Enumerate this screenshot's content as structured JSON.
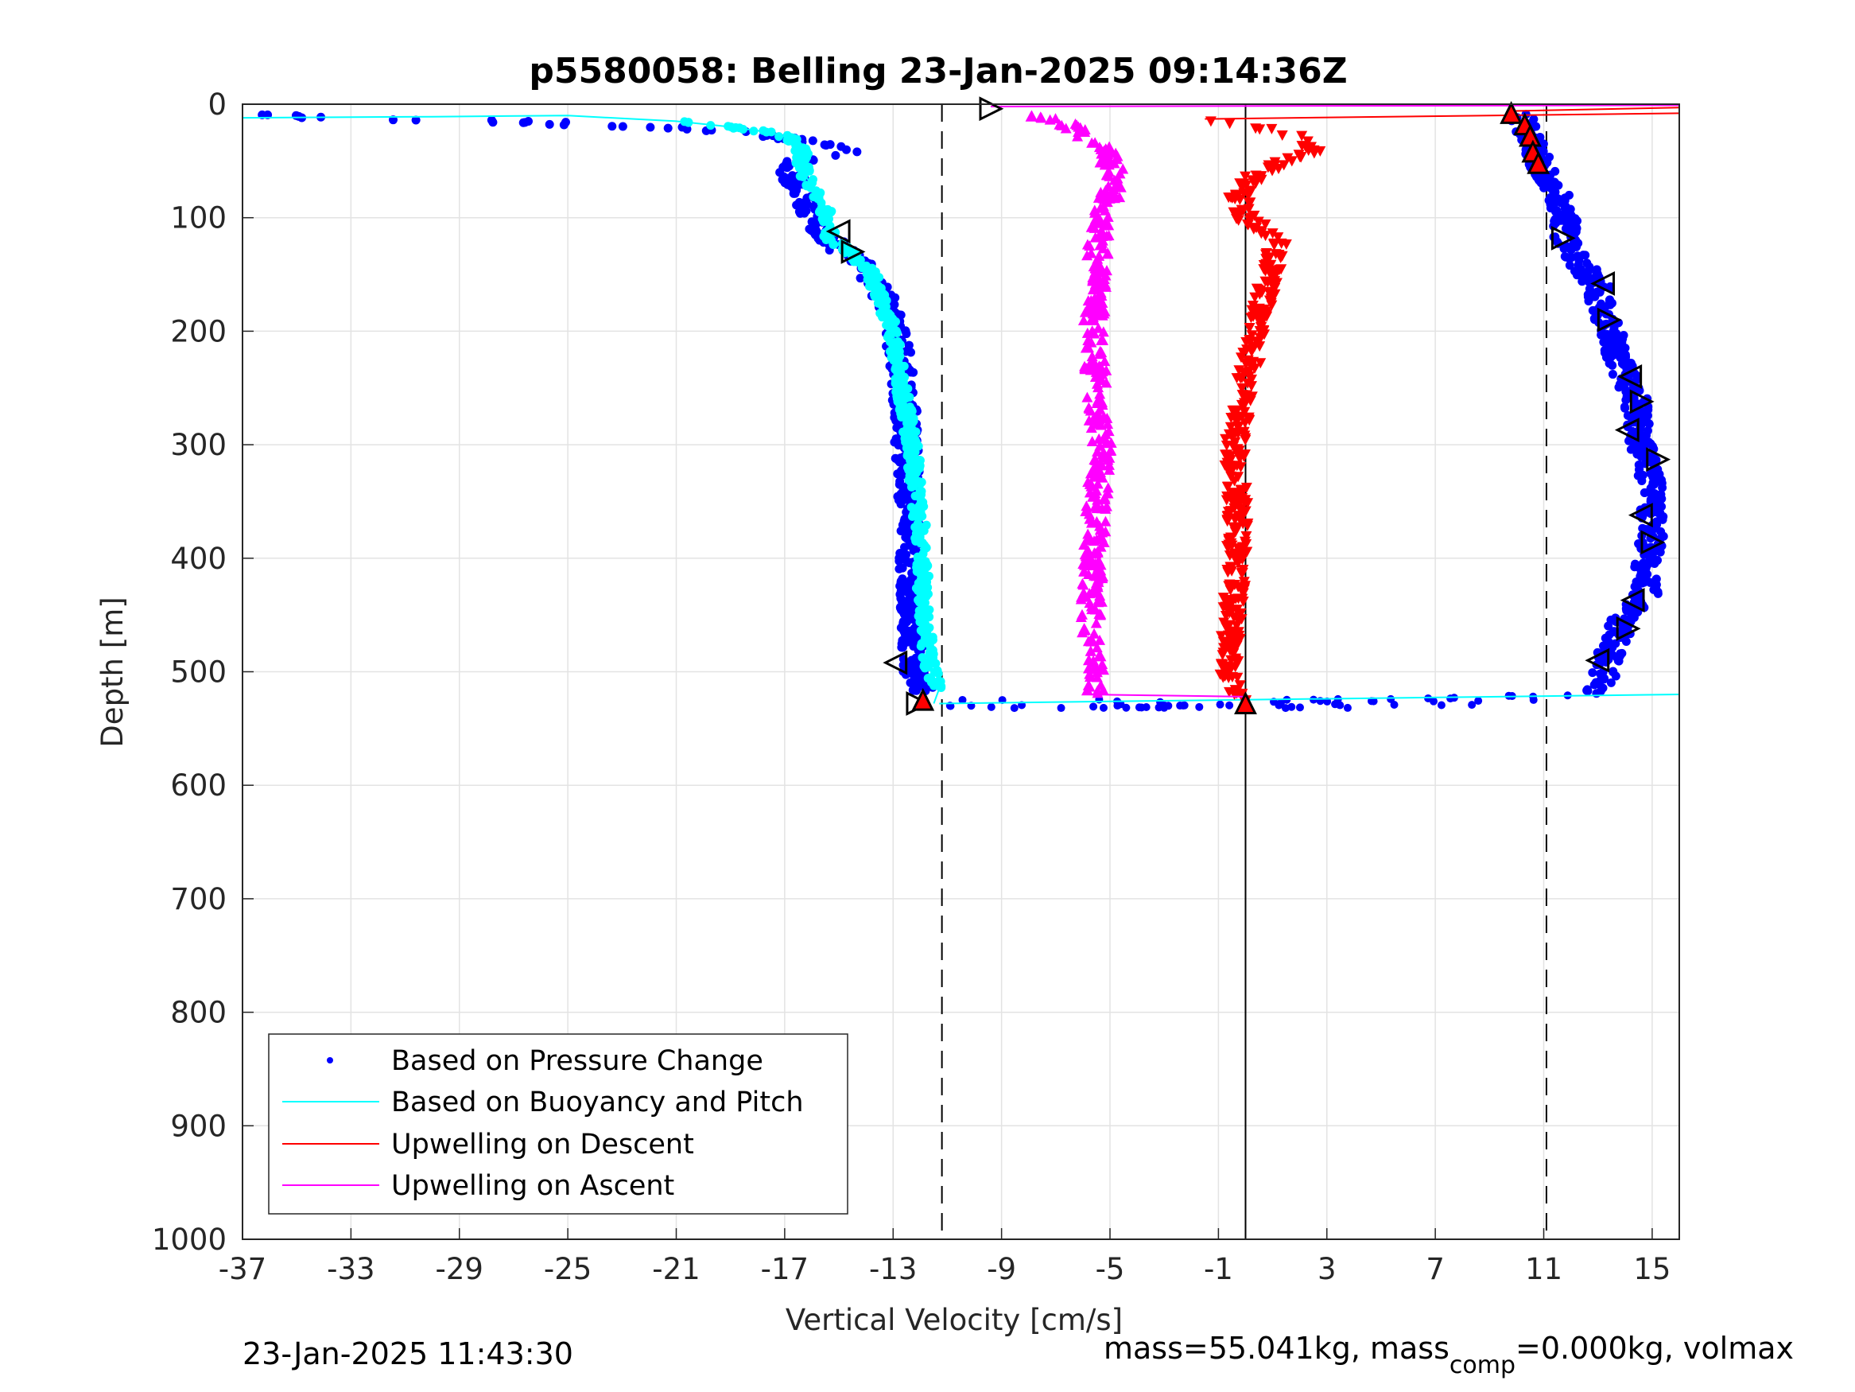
{
  "chart_data": {
    "type": "scatter",
    "title": "p5580058: Belling 23-Jan-2025 09:14:36Z",
    "xlabel": "Vertical Velocity [cm/s]",
    "ylabel": "Depth [m]",
    "xlim": [
      -37,
      16
    ],
    "ylim": [
      0,
      1000
    ],
    "y_reversed": true,
    "grid": true,
    "x_ticks": [
      "-37",
      "-33",
      "-29",
      "-25",
      "-21",
      "-17",
      "-13",
      "-9",
      "-5",
      "-1",
      "3",
      "7",
      "11",
      "15"
    ],
    "y_ticks": [
      "0",
      "100",
      "200",
      "300",
      "400",
      "500",
      "600",
      "700",
      "800",
      "900",
      "1000"
    ],
    "legend": {
      "position": "bottom-left",
      "entries": [
        "Based on Pressure Change",
        "Based on Buoyancy and Pitch",
        "Upwelling on Descent",
        "Upwelling on Ascent"
      ]
    },
    "colors": {
      "pressure": "#0000ff",
      "buoyancy": "#00ffff",
      "descent": "#ff0000",
      "ascent": "#ff00ff"
    },
    "reference_lines": [
      {
        "x": -11.2,
        "style": "dashed"
      },
      {
        "x": 0,
        "style": "solid"
      },
      {
        "x": 11.1,
        "style": "dashed"
      }
    ],
    "series": [
      {
        "name": "Based on Pressure Change",
        "profiles": [
          {
            "depth": [
              10,
              15,
              20,
              25,
              30,
              35,
              40,
              50,
              60,
              80,
              100,
              120,
              140,
              160,
              200,
              250,
              300,
              350,
              400,
              450,
              500,
              520
            ],
            "velocity": [
              -36.5,
              -28,
              -22,
              -18.5,
              -17,
              -15.5,
              -14.5,
              -16.5,
              -16.8,
              -16.3,
              -16,
              -15.3,
              -14.2,
              -13.5,
              -12.9,
              -12.6,
              -12.5,
              -12.4,
              -12.4,
              -12.3,
              -12.2,
              -11.8
            ]
          },
          {
            "depth": [
              520,
              510,
              500,
              480,
              450,
              430,
              400,
              380,
              350,
              320,
              300,
              280,
              260,
              240,
              220,
              200,
              180,
              160,
              140,
              120,
              100,
              80,
              60,
              40,
              20,
              10
            ],
            "velocity": [
              12.8,
              13.3,
              13.2,
              13.5,
              14,
              14.8,
              14.8,
              15,
              15,
              14.9,
              14.6,
              14.5,
              14.4,
              14,
              13.7,
              13.5,
              13.1,
              13,
              12.3,
              11.8,
              11.8,
              11.6,
              11,
              10.7,
              10.3,
              10.2
            ]
          }
        ]
      },
      {
        "name": "Based on Buoyancy and Pitch",
        "profiles": [
          {
            "depth": [
              12,
              11,
              10,
              15,
              20,
              25,
              30,
              40,
              60,
              80,
              100,
              120,
              130,
              150,
              200,
              250,
              300,
              350,
              400,
              450,
              500,
              515,
              528
            ],
            "velocity": [
              -37,
              -30,
              -25,
              -21,
              -19,
              -17.5,
              -16.8,
              -16.4,
              -16.3,
              -15.8,
              -15.4,
              -15.3,
              -14.6,
              -13.8,
              -13,
              -12.7,
              -12.3,
              -12.1,
              -11.9,
              -11.9,
              -11.6,
              -11.3,
              -11.5
            ]
          }
        ]
      },
      {
        "name": "Upwelling on Descent",
        "profiles": [
          {
            "depth": [
              13,
              25,
              40,
              60,
              80,
              100,
              120,
              140,
              160,
              180,
              200,
              250,
              300,
              350,
              400,
              450,
              500,
              525
            ],
            "velocity": [
              -1.5,
              1.5,
              2.5,
              0.5,
              -0.3,
              0,
              1.2,
              1,
              0.8,
              0.6,
              0.4,
              0,
              -0.4,
              -0.3,
              -0.3,
              -0.5,
              -0.6,
              -0.2
            ]
          }
        ]
      },
      {
        "name": "Upwelling on Ascent",
        "profiles": [
          {
            "depth": [
              520,
              500,
              450,
              400,
              350,
              300,
              250,
              200,
              150,
              100,
              80,
              60,
              40,
              20,
              8
            ],
            "velocity": [
              -5.5,
              -5.6,
              -5.7,
              -5.6,
              -5.5,
              -5.3,
              -5.5,
              -5.6,
              -5.5,
              -5.4,
              -5,
              -4.8,
              -5.2,
              -6.3,
              -8
            ]
          }
        ]
      }
    ],
    "markers": [
      {
        "x": -15,
        "y": 112,
        "symbol": "triangle-left"
      },
      {
        "x": -14.5,
        "y": 130,
        "symbol": "triangle-right"
      },
      {
        "x": -12.9,
        "y": 492,
        "symbol": "triangle-left"
      },
      {
        "x": -12.1,
        "y": 528,
        "symbol": "triangle-right"
      },
      {
        "x": -9.4,
        "y": 4,
        "symbol": "triangle-right"
      },
      {
        "x": 11.7,
        "y": 118,
        "symbol": "triangle-right"
      },
      {
        "x": 13.2,
        "y": 158,
        "symbol": "triangle-left"
      },
      {
        "x": 13.4,
        "y": 190,
        "symbol": "triangle-right"
      },
      {
        "x": 14.2,
        "y": 240,
        "symbol": "triangle-left"
      },
      {
        "x": 14.6,
        "y": 262,
        "symbol": "triangle-right"
      },
      {
        "x": 14.1,
        "y": 287,
        "symbol": "triangle-left"
      },
      {
        "x": 15.2,
        "y": 313,
        "symbol": "triangle-right"
      },
      {
        "x": 14.6,
        "y": 362,
        "symbol": "triangle-left"
      },
      {
        "x": 15,
        "y": 386,
        "symbol": "triangle-right"
      },
      {
        "x": 14.3,
        "y": 437,
        "symbol": "triangle-left"
      },
      {
        "x": 14.1,
        "y": 462,
        "symbol": "triangle-right"
      },
      {
        "x": 13,
        "y": 490,
        "symbol": "triangle-left"
      }
    ],
    "red_markers": [
      {
        "x": -11.9,
        "y": 525,
        "symbol": "triangle-up"
      },
      {
        "x": 0,
        "y": 528,
        "symbol": "triangle-up"
      },
      {
        "x": 9.8,
        "y": 8,
        "symbol": "triangle-up"
      },
      {
        "x": 10.3,
        "y": 18,
        "symbol": "triangle-up"
      },
      {
        "x": 10.5,
        "y": 28,
        "symbol": "triangle-up"
      },
      {
        "x": 10.6,
        "y": 42,
        "symbol": "triangle-up"
      },
      {
        "x": 10.8,
        "y": 52,
        "symbol": "triangle-up"
      }
    ]
  },
  "footer": {
    "timestamp": "23-Jan-2025 11:43:30",
    "mass_prefix": "mass=55.041kg, mass",
    "mass_subscript": "comp",
    "mass_suffix": "=0.000kg, volmax"
  }
}
